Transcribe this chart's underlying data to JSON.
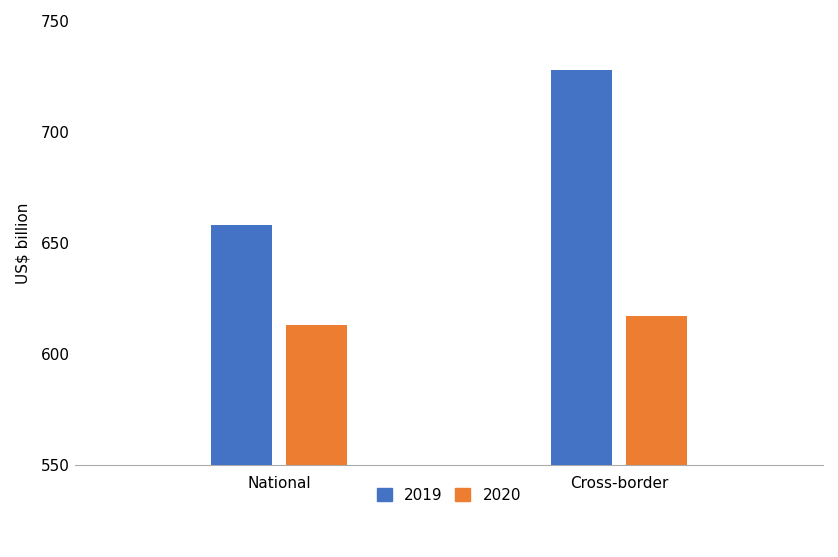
{
  "categories": [
    "National",
    "Cross-border"
  ],
  "values_2019": [
    658,
    728
  ],
  "values_2020": [
    613,
    617
  ],
  "color_2019": "#4472C4",
  "color_2020": "#ED7D31",
  "ylabel": "US$ billion",
  "ylim": [
    550,
    750
  ],
  "yticks": [
    550,
    600,
    650,
    700,
    750
  ],
  "legend_labels": [
    "2019",
    "2020"
  ],
  "bar_width": 0.18,
  "bar_gap": 0.04,
  "background_color": "#ffffff",
  "tick_label_fontsize": 11,
  "ylabel_fontsize": 11,
  "legend_fontsize": 11,
  "xtick_fontsize": 11
}
